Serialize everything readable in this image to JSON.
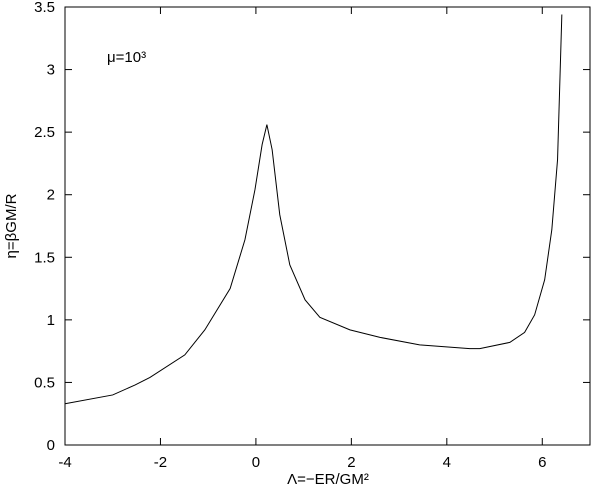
{
  "chart_data": {
    "type": "line",
    "x_label": "Λ=−ER/GM²",
    "y_label": "η=βGM/R",
    "annotation": "μ=10³",
    "x": [
      -4,
      -3,
      -2.53,
      -2.22,
      -1.49,
      -1.07,
      -0.54,
      -0.23,
      -0.02,
      0.13,
      0.23,
      0.34,
      0.5,
      0.71,
      1.03,
      1.34,
      1.97,
      2.6,
      3.43,
      4.48,
      4.69,
      5.32,
      5.63,
      5.84,
      6.05,
      6.2,
      6.32,
      6.41
    ],
    "series": [
      {
        "color": "#000000",
        "values": [
          0.33,
          0.4,
          0.48,
          0.54,
          0.72,
          0.92,
          1.25,
          1.64,
          2.04,
          2.4,
          2.56,
          2.36,
          1.84,
          1.44,
          1.16,
          1.02,
          0.92,
          0.86,
          0.8,
          0.77,
          0.77,
          0.82,
          0.9,
          1.04,
          1.32,
          1.72,
          2.28,
          3.44
        ]
      }
    ],
    "xlim": [
      -4,
      7
    ],
    "ylim": [
      0,
      3.5
    ],
    "xticks": [
      -4,
      -2,
      0,
      2,
      4,
      6
    ],
    "yticks": [
      0,
      0.5,
      1,
      1.5,
      2,
      2.5,
      3,
      3.5
    ]
  }
}
